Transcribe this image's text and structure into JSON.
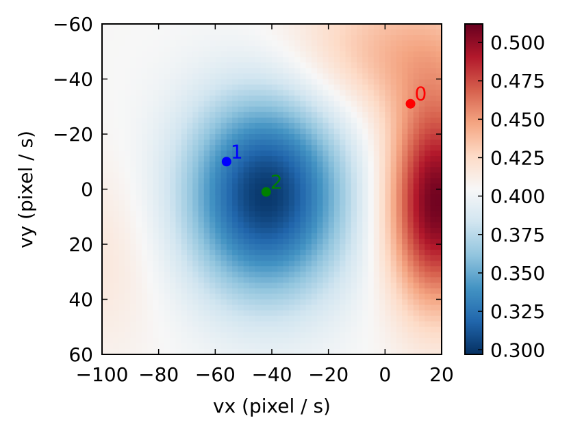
{
  "chart_data": {
    "type": "heatmap",
    "xlabel": "vx (pixel / s)",
    "ylabel": "vy (pixel / s)",
    "xlim": [
      -100,
      20
    ],
    "ylim": [
      60,
      -60
    ],
    "y_axis_inverted": true,
    "x_ticks": [
      "−100",
      "−80",
      "−60",
      "−40",
      "−20",
      "0",
      "20"
    ],
    "x_tick_values": [
      -100,
      -80,
      -60,
      -40,
      -20,
      0,
      20
    ],
    "y_ticks": [
      "−60",
      "−40",
      "−20",
      "0",
      "20",
      "40",
      "60"
    ],
    "y_tick_values": [
      -60,
      -40,
      -20,
      0,
      20,
      40,
      60
    ],
    "colormap": "RdBu_r",
    "colorbar": {
      "min": 0.297,
      "max": 0.512,
      "ticks": [
        "0.300",
        "0.325",
        "0.350",
        "0.375",
        "0.400",
        "0.425",
        "0.450",
        "0.475",
        "0.500"
      ],
      "tick_values": [
        0.3,
        0.325,
        0.35,
        0.375,
        0.4,
        0.425,
        0.45,
        0.475,
        0.5
      ]
    },
    "field": {
      "background": 0.405,
      "components": [
        {
          "vx": -42,
          "vy": 2,
          "sx": 20,
          "sy": 26,
          "amp": -0.105
        },
        {
          "vx": 18,
          "vy": 5,
          "sx": 12,
          "sy": 26,
          "amp": 0.105
        },
        {
          "vx": 5,
          "vy": -50,
          "sx": 28,
          "sy": 18,
          "amp": 0.035
        },
        {
          "vx": -100,
          "vy": 25,
          "sx": 15,
          "sy": 25,
          "amp": 0.012
        }
      ]
    },
    "points": [
      {
        "label": "0",
        "vx": 9,
        "vy": -31,
        "color": "#ff0000"
      },
      {
        "label": "1",
        "vx": -56,
        "vy": -10,
        "color": "#0000ff"
      },
      {
        "label": "2",
        "vx": -42,
        "vy": 1,
        "color": "#008000"
      }
    ]
  }
}
